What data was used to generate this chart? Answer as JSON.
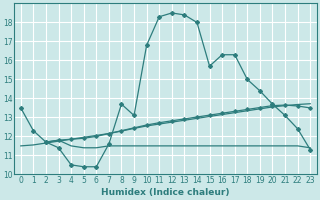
{
  "title": "",
  "xlabel": "Humidex (Indice chaleur)",
  "ylabel": "",
  "background_color": "#cce8e8",
  "grid_color": "#ffffff",
  "line_color": "#2d7d7d",
  "xlim": [
    -0.5,
    23.5
  ],
  "ylim": [
    10,
    19
  ],
  "yticks": [
    10,
    11,
    12,
    13,
    14,
    15,
    16,
    17,
    18
  ],
  "xticks": [
    0,
    1,
    2,
    3,
    4,
    5,
    6,
    7,
    8,
    9,
    10,
    11,
    12,
    13,
    14,
    15,
    16,
    17,
    18,
    19,
    20,
    21,
    22,
    23
  ],
  "line1_x": [
    0,
    1,
    2,
    3,
    4,
    5,
    6,
    7,
    8,
    9,
    10,
    11,
    12,
    13,
    14,
    15,
    16,
    17,
    18,
    19,
    20,
    21,
    22,
    23
  ],
  "line1_y": [
    13.5,
    12.3,
    11.7,
    11.4,
    10.5,
    10.4,
    10.4,
    11.6,
    13.7,
    13.1,
    16.8,
    18.3,
    18.5,
    18.4,
    18.0,
    15.7,
    16.3,
    16.3,
    15.0,
    14.4,
    13.7,
    13.1,
    12.4,
    11.3
  ],
  "line2_x": [
    2,
    3,
    4,
    5,
    6,
    7,
    8,
    9,
    10,
    11,
    12,
    13,
    14,
    15,
    16,
    17,
    18,
    19,
    20,
    21,
    22,
    23
  ],
  "line2_y": [
    11.7,
    11.8,
    11.5,
    11.4,
    11.4,
    11.5,
    11.5,
    11.5,
    11.5,
    11.5,
    11.5,
    11.5,
    11.5,
    11.5,
    11.5,
    11.5,
    11.5,
    11.5,
    11.5,
    11.5,
    11.5,
    11.4
  ],
  "line3_x": [
    0,
    1,
    2,
    3,
    4,
    5,
    6,
    7,
    8,
    9,
    10,
    11,
    12,
    13,
    14,
    15,
    16,
    17,
    18,
    19,
    20,
    21,
    22,
    23
  ],
  "line3_y": [
    11.5,
    11.55,
    11.65,
    11.75,
    11.85,
    11.95,
    12.05,
    12.15,
    12.28,
    12.42,
    12.55,
    12.65,
    12.75,
    12.85,
    12.95,
    13.05,
    13.15,
    13.25,
    13.35,
    13.45,
    13.55,
    13.62,
    13.68,
    13.72
  ],
  "line4_x": [
    2,
    3,
    4,
    5,
    6,
    7,
    8,
    9,
    10,
    11,
    12,
    13,
    14,
    15,
    16,
    17,
    18,
    19,
    20,
    21,
    22,
    23
  ],
  "line4_y": [
    11.7,
    11.8,
    11.85,
    11.9,
    12.0,
    12.15,
    12.3,
    12.45,
    12.6,
    12.72,
    12.82,
    12.92,
    13.02,
    13.12,
    13.22,
    13.32,
    13.42,
    13.52,
    13.62,
    13.65,
    13.6,
    13.5
  ]
}
